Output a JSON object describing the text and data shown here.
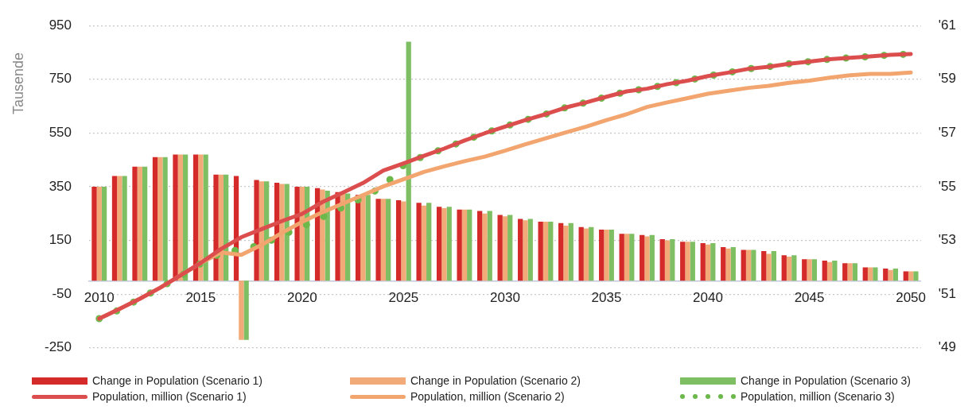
{
  "chart_data": {
    "type": "bar",
    "ylabel": "Tausende",
    "categories": [
      "2010",
      null,
      null,
      null,
      null,
      "2015",
      null,
      null,
      null,
      null,
      "2020",
      null,
      null,
      null,
      null,
      "2025",
      null,
      null,
      null,
      null,
      "2030",
      null,
      null,
      null,
      null,
      "2035",
      null,
      null,
      null,
      null,
      "2040",
      null,
      null,
      null,
      null,
      "2045",
      null,
      null,
      null,
      null,
      "2050"
    ],
    "series": [
      {
        "name": "Change in Population (Scenario 1)",
        "color": "#d42a2a",
        "values": [
          350,
          390,
          425,
          460,
          470,
          470,
          395,
          390,
          375,
          365,
          350,
          345,
          330,
          320,
          305,
          300,
          290,
          275,
          265,
          260,
          245,
          230,
          220,
          215,
          200,
          190,
          175,
          170,
          155,
          145,
          140,
          125,
          115,
          110,
          95,
          80,
          75,
          65,
          50,
          45,
          35
        ]
      },
      {
        "name": "Change in Population (Scenario 2)",
        "color": "#f2aa78",
        "values": [
          350,
          390,
          425,
          460,
          470,
          470,
          395,
          -220,
          370,
          360,
          350,
          340,
          325,
          315,
          305,
          295,
          280,
          270,
          265,
          250,
          240,
          225,
          220,
          205,
          195,
          190,
          175,
          165,
          150,
          145,
          135,
          120,
          115,
          100,
          90,
          80,
          70,
          65,
          50,
          40,
          35
        ]
      },
      {
        "name": "Change in Population (Scenario 3)",
        "color": "#7fbf63",
        "values": [
          350,
          390,
          425,
          460,
          470,
          470,
          395,
          -220,
          370,
          360,
          350,
          335,
          325,
          320,
          305,
          890,
          290,
          275,
          265,
          260,
          245,
          230,
          220,
          215,
          200,
          190,
          175,
          170,
          155,
          145,
          140,
          125,
          115,
          110,
          95,
          80,
          75,
          65,
          50,
          45,
          35
        ]
      },
      {
        "name": "Population, million (Scenario 1)",
        "type": "line",
        "axis": "y2",
        "line_style": "solid",
        "color": "#dc4e4e",
        "values": [
          50.09,
          50.45,
          50.83,
          51.24,
          51.7,
          52.16,
          52.68,
          53.12,
          53.42,
          53.72,
          53.99,
          54.43,
          54.78,
          55.14,
          55.6,
          55.87,
          56.15,
          56.42,
          56.72,
          56.99,
          57.24,
          57.48,
          57.7,
          57.95,
          58.14,
          58.35,
          58.55,
          58.65,
          58.82,
          58.95,
          59.12,
          59.25,
          59.39,
          59.47,
          59.58,
          59.66,
          59.75,
          59.8,
          59.85,
          59.91,
          59.94
        ]
      },
      {
        "name": "Population, million (Scenario 2)",
        "type": "line",
        "axis": "y2",
        "line_style": "solid",
        "color": "#f2a56e",
        "values": [
          50.09,
          50.45,
          50.83,
          51.24,
          51.7,
          52.16,
          52.55,
          52.46,
          52.83,
          53.28,
          53.69,
          54.05,
          54.37,
          54.69,
          55.01,
          55.28,
          55.55,
          55.76,
          55.95,
          56.12,
          56.34,
          56.58,
          56.8,
          57.02,
          57.24,
          57.48,
          57.7,
          57.97,
          58.14,
          58.3,
          58.46,
          58.57,
          58.68,
          58.76,
          58.87,
          58.95,
          59.06,
          59.15,
          59.2,
          59.2,
          59.25
        ]
      },
      {
        "name": "Population, million (Scenario 3)",
        "type": "line",
        "axis": "y2",
        "line_style": "dotted",
        "color": "#6cb84a",
        "values": [
          50.09,
          50.42,
          50.83,
          51.24,
          51.67,
          52.14,
          52.53,
          52.67,
          52.83,
          53.2,
          53.51,
          53.87,
          54.24,
          54.6,
          55.01,
          55.8,
          56.15,
          56.42,
          56.72,
          56.99,
          57.24,
          57.48,
          57.7,
          57.95,
          58.14,
          58.35,
          58.55,
          58.65,
          58.82,
          58.95,
          59.12,
          59.25,
          59.39,
          59.47,
          59.58,
          59.66,
          59.75,
          59.8,
          59.85,
          59.91,
          59.94
        ]
      }
    ],
    "ylim": [
      -250,
      950
    ],
    "yticks": [
      -250,
      -50,
      150,
      350,
      550,
      750,
      950
    ],
    "y2lim": [
      49,
      61
    ],
    "y2ticks": [
      {
        "value": 49,
        "label": "'49"
      },
      {
        "value": 51,
        "label": "'51"
      },
      {
        "value": 53,
        "label": "'53"
      },
      {
        "value": 55,
        "label": "'55"
      },
      {
        "value": 57,
        "label": "'57"
      },
      {
        "value": 59,
        "label": "'59"
      },
      {
        "value": 61,
        "label": "'61"
      }
    ],
    "grid": "y",
    "legend": "bottom",
    "marker": "none"
  }
}
